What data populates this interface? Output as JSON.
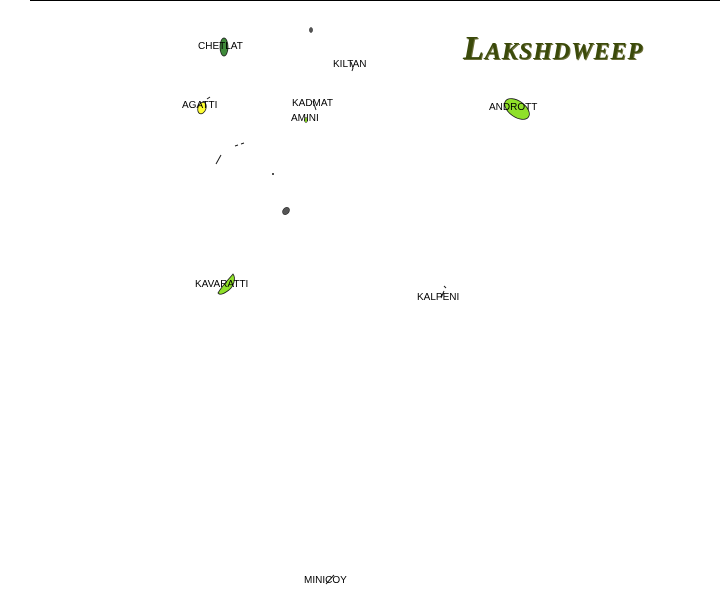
{
  "map": {
    "title": "Lakshdweep",
    "colors": {
      "title": "#3b4a0a",
      "island_fill_green": "#8fe02a",
      "island_fill_yellow": "#ffff33",
      "island_fill_dark": "#3f8a3a",
      "island_stroke": "#1a1a1a"
    },
    "islands": [
      {
        "name": "CHETLAT"
      },
      {
        "name": "KILTAN"
      },
      {
        "name": "AGATTI"
      },
      {
        "name": "KADMAT"
      },
      {
        "name": "AMINI"
      },
      {
        "name": "ANDROTT"
      },
      {
        "name": "KAVARATTI"
      },
      {
        "name": "KALPENI"
      },
      {
        "name": "MINICOY"
      }
    ]
  }
}
